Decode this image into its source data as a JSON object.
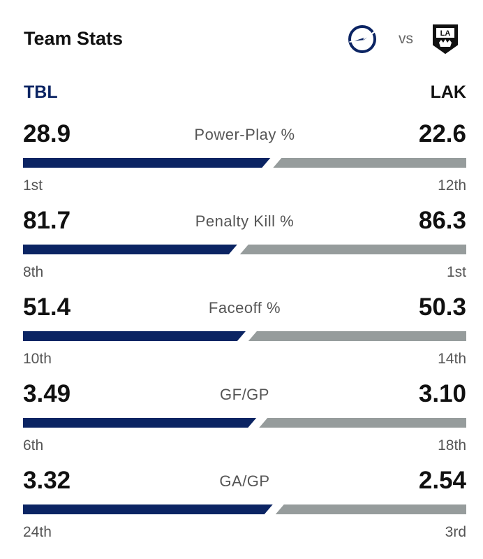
{
  "header": {
    "title": "Team Stats",
    "vs": "vs"
  },
  "teams": {
    "left": {
      "abbr": "TBL",
      "color": "#0b2463",
      "logo": "lightning-logo-icon"
    },
    "right": {
      "abbr": "LAK",
      "color": "#969c9c",
      "logo": "kings-logo-icon"
    }
  },
  "stats": [
    {
      "label": "Power-Play %",
      "left_value": "28.9",
      "right_value": "22.6",
      "left_rank": "1st",
      "right_rank": "12th",
      "left_num": 28.9,
      "right_num": 22.6
    },
    {
      "label": "Penalty Kill %",
      "left_value": "81.7",
      "right_value": "86.3",
      "left_rank": "8th",
      "right_rank": "1st",
      "left_num": 81.7,
      "right_num": 86.3
    },
    {
      "label": "Faceoff %",
      "left_value": "51.4",
      "right_value": "50.3",
      "left_rank": "10th",
      "right_rank": "14th",
      "left_num": 51.4,
      "right_num": 50.3
    },
    {
      "label": "GF/GP",
      "left_value": "3.49",
      "right_value": "3.10",
      "left_rank": "6th",
      "right_rank": "18th",
      "left_num": 3.49,
      "right_num": 3.1
    },
    {
      "label": "GA/GP",
      "left_value": "3.32",
      "right_value": "2.54",
      "left_rank": "24th",
      "right_rank": "3rd",
      "left_num": 3.32,
      "right_num": 2.54
    }
  ]
}
